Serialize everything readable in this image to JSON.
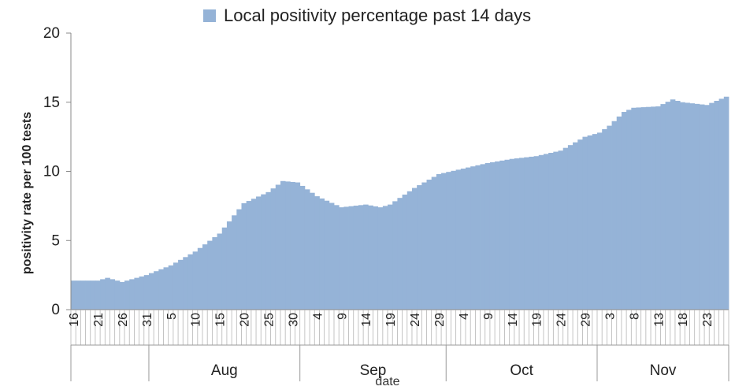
{
  "chart_data": {
    "type": "area",
    "title": "",
    "legend": {
      "entries": [
        "Local positivity percentage past 14 days"
      ],
      "placement": "top"
    },
    "xlabel": "date",
    "ylabel": "positivity rate per 100 tests",
    "ylim": [
      0,
      20
    ],
    "y_ticks": [
      "0",
      "5",
      "10",
      "15",
      "20"
    ],
    "grid": false,
    "x_start": "2020-07-16",
    "x_end": "2020-11-27",
    "x_ticks": [
      {
        "date": "2020-07-16",
        "label": "16"
      },
      {
        "date": "2020-07-21",
        "label": "21"
      },
      {
        "date": "2020-07-26",
        "label": "26"
      },
      {
        "date": "2020-07-31",
        "label": "31"
      },
      {
        "date": "2020-08-05",
        "label": "5"
      },
      {
        "date": "2020-08-10",
        "label": "10"
      },
      {
        "date": "2020-08-15",
        "label": "15"
      },
      {
        "date": "2020-08-20",
        "label": "20"
      },
      {
        "date": "2020-08-25",
        "label": "25"
      },
      {
        "date": "2020-08-30",
        "label": "30"
      },
      {
        "date": "2020-09-04",
        "label": "4"
      },
      {
        "date": "2020-09-09",
        "label": "9"
      },
      {
        "date": "2020-09-14",
        "label": "14"
      },
      {
        "date": "2020-09-19",
        "label": "19"
      },
      {
        "date": "2020-09-24",
        "label": "24"
      },
      {
        "date": "2020-09-29",
        "label": "29"
      },
      {
        "date": "2020-10-04",
        "label": "4"
      },
      {
        "date": "2020-10-09",
        "label": "9"
      },
      {
        "date": "2020-10-14",
        "label": "14"
      },
      {
        "date": "2020-10-19",
        "label": "19"
      },
      {
        "date": "2020-10-24",
        "label": "24"
      },
      {
        "date": "2020-10-29",
        "label": "29"
      },
      {
        "date": "2020-11-03",
        "label": "3"
      },
      {
        "date": "2020-11-08",
        "label": "8"
      },
      {
        "date": "2020-11-13",
        "label": "13"
      },
      {
        "date": "2020-11-18",
        "label": "18"
      },
      {
        "date": "2020-11-23",
        "label": "23"
      }
    ],
    "months": [
      {
        "label": "",
        "start": "2020-07-16",
        "end": "2020-08-01"
      },
      {
        "label": "Aug",
        "start": "2020-08-01",
        "end": "2020-09-01"
      },
      {
        "label": "Sep",
        "start": "2020-09-01",
        "end": "2020-10-01"
      },
      {
        "label": "Oct",
        "start": "2020-10-01",
        "end": "2020-11-01"
      },
      {
        "label": "Nov",
        "start": "2020-11-01",
        "end": "2020-11-28"
      }
    ],
    "series": [
      {
        "name": "Local positivity percentage past 14 days",
        "color": "#95B3D7",
        "points": [
          {
            "x": "2020-07-16",
            "y": 2.1
          },
          {
            "x": "2020-07-21",
            "y": 2.1
          },
          {
            "x": "2020-07-23",
            "y": 2.3
          },
          {
            "x": "2020-07-26",
            "y": 2.0
          },
          {
            "x": "2020-07-31",
            "y": 2.5
          },
          {
            "x": "2020-08-05",
            "y": 3.2
          },
          {
            "x": "2020-08-10",
            "y": 4.2
          },
          {
            "x": "2020-08-15",
            "y": 5.5
          },
          {
            "x": "2020-08-20",
            "y": 7.7
          },
          {
            "x": "2020-08-25",
            "y": 8.5
          },
          {
            "x": "2020-08-28",
            "y": 9.3
          },
          {
            "x": "2020-08-31",
            "y": 9.2
          },
          {
            "x": "2020-09-04",
            "y": 8.2
          },
          {
            "x": "2020-09-09",
            "y": 7.4
          },
          {
            "x": "2020-09-14",
            "y": 7.6
          },
          {
            "x": "2020-09-17",
            "y": 7.4
          },
          {
            "x": "2020-09-19",
            "y": 7.6
          },
          {
            "x": "2020-09-24",
            "y": 8.8
          },
          {
            "x": "2020-09-29",
            "y": 9.8
          },
          {
            "x": "2020-10-04",
            "y": 10.2
          },
          {
            "x": "2020-10-09",
            "y": 10.6
          },
          {
            "x": "2020-10-14",
            "y": 10.9
          },
          {
            "x": "2020-10-19",
            "y": 11.1
          },
          {
            "x": "2020-10-24",
            "y": 11.5
          },
          {
            "x": "2020-10-29",
            "y": 12.5
          },
          {
            "x": "2020-11-01",
            "y": 12.8
          },
          {
            "x": "2020-11-03",
            "y": 13.3
          },
          {
            "x": "2020-11-06",
            "y": 14.3
          },
          {
            "x": "2020-11-08",
            "y": 14.6
          },
          {
            "x": "2020-11-13",
            "y": 14.7
          },
          {
            "x": "2020-11-16",
            "y": 15.2
          },
          {
            "x": "2020-11-18",
            "y": 15.0
          },
          {
            "x": "2020-11-23",
            "y": 14.8
          },
          {
            "x": "2020-11-27",
            "y": 15.4
          }
        ]
      }
    ]
  }
}
